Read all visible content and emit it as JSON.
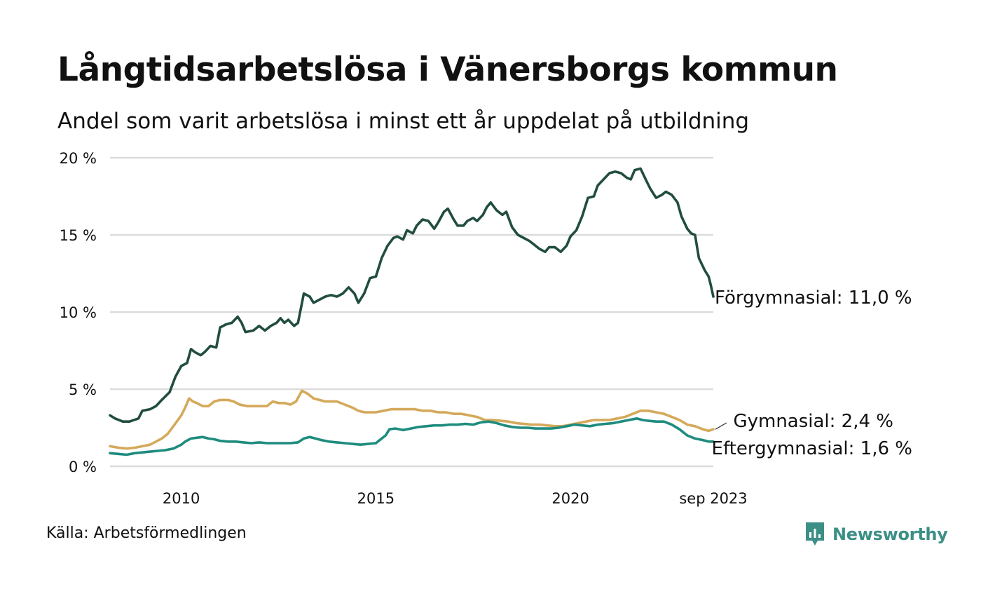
{
  "title": "Långtidsarbetslösa i Vänersborgs kommun",
  "subtitle": "Andel som varit arbetslösa i minst ett år uppdelat på utbildning",
  "source": "Källa: Arbetsförmedlingen",
  "brand": {
    "name": "Newsworthy",
    "color": "#3d8f86"
  },
  "chart_data": {
    "type": "line",
    "title": "Långtidsarbetslösa i Vänersborgs kommun",
    "subtitle": "Andel som varit arbetslösa i minst ett år uppdelat på utbildning",
    "xlabel": "",
    "ylabel": "",
    "xlim": [
      2008.17,
      2023.67
    ],
    "ylim": [
      0,
      20
    ],
    "grid": true,
    "y_ticks": [
      {
        "value": 0,
        "label": "0 %"
      },
      {
        "value": 5,
        "label": "5 %"
      },
      {
        "value": 10,
        "label": "10 %"
      },
      {
        "value": 15,
        "label": "15 %"
      },
      {
        "value": 20,
        "label": "20 %"
      }
    ],
    "x_ticks": [
      {
        "value": 2010,
        "label": "2010"
      },
      {
        "value": 2015,
        "label": "2015"
      },
      {
        "value": 2020,
        "label": "2020"
      },
      {
        "value": 2023.67,
        "label": "sep 2023"
      }
    ],
    "series": [
      {
        "name": "Förgymnasial",
        "end_label": "Förgymnasial: 11,0 %",
        "color": "#214d41",
        "points": [
          [
            2008.17,
            3.3
          ],
          [
            2008.3,
            3.1
          ],
          [
            2008.5,
            2.9
          ],
          [
            2008.67,
            2.9
          ],
          [
            2008.9,
            3.1
          ],
          [
            2009.0,
            3.6
          ],
          [
            2009.2,
            3.7
          ],
          [
            2009.35,
            3.9
          ],
          [
            2009.5,
            4.3
          ],
          [
            2009.7,
            4.8
          ],
          [
            2009.85,
            5.8
          ],
          [
            2010.0,
            6.5
          ],
          [
            2010.15,
            6.7
          ],
          [
            2010.25,
            7.6
          ],
          [
            2010.35,
            7.4
          ],
          [
            2010.5,
            7.2
          ],
          [
            2010.6,
            7.4
          ],
          [
            2010.75,
            7.8
          ],
          [
            2010.9,
            7.7
          ],
          [
            2011.0,
            9.0
          ],
          [
            2011.15,
            9.2
          ],
          [
            2011.3,
            9.3
          ],
          [
            2011.45,
            9.7
          ],
          [
            2011.55,
            9.3
          ],
          [
            2011.65,
            8.7
          ],
          [
            2011.85,
            8.8
          ],
          [
            2012.0,
            9.1
          ],
          [
            2012.15,
            8.8
          ],
          [
            2012.3,
            9.1
          ],
          [
            2012.45,
            9.3
          ],
          [
            2012.55,
            9.6
          ],
          [
            2012.65,
            9.3
          ],
          [
            2012.75,
            9.5
          ],
          [
            2012.9,
            9.1
          ],
          [
            2013.0,
            9.3
          ],
          [
            2013.15,
            11.2
          ],
          [
            2013.3,
            11.0
          ],
          [
            2013.4,
            10.6
          ],
          [
            2013.55,
            10.8
          ],
          [
            2013.7,
            11.0
          ],
          [
            2013.85,
            11.1
          ],
          [
            2014.0,
            11.0
          ],
          [
            2014.15,
            11.2
          ],
          [
            2014.3,
            11.6
          ],
          [
            2014.45,
            11.2
          ],
          [
            2014.55,
            10.6
          ],
          [
            2014.7,
            11.2
          ],
          [
            2014.85,
            12.2
          ],
          [
            2015.0,
            12.3
          ],
          [
            2015.15,
            13.5
          ],
          [
            2015.3,
            14.3
          ],
          [
            2015.45,
            14.8
          ],
          [
            2015.55,
            14.9
          ],
          [
            2015.7,
            14.7
          ],
          [
            2015.8,
            15.3
          ],
          [
            2015.95,
            15.1
          ],
          [
            2016.05,
            15.6
          ],
          [
            2016.2,
            16.0
          ],
          [
            2016.35,
            15.9
          ],
          [
            2016.5,
            15.4
          ],
          [
            2016.6,
            15.8
          ],
          [
            2016.75,
            16.5
          ],
          [
            2016.85,
            16.7
          ],
          [
            2017.0,
            16.0
          ],
          [
            2017.1,
            15.6
          ],
          [
            2017.25,
            15.6
          ],
          [
            2017.35,
            15.9
          ],
          [
            2017.5,
            16.1
          ],
          [
            2017.6,
            15.9
          ],
          [
            2017.75,
            16.3
          ],
          [
            2017.85,
            16.8
          ],
          [
            2017.95,
            17.1
          ],
          [
            2018.1,
            16.6
          ],
          [
            2018.25,
            16.3
          ],
          [
            2018.35,
            16.5
          ],
          [
            2018.5,
            15.5
          ],
          [
            2018.65,
            15.0
          ],
          [
            2018.8,
            14.8
          ],
          [
            2018.95,
            14.6
          ],
          [
            2019.05,
            14.4
          ],
          [
            2019.2,
            14.1
          ],
          [
            2019.35,
            13.9
          ],
          [
            2019.45,
            14.2
          ],
          [
            2019.6,
            14.2
          ],
          [
            2019.75,
            13.9
          ],
          [
            2019.9,
            14.3
          ],
          [
            2020.0,
            14.9
          ],
          [
            2020.15,
            15.3
          ],
          [
            2020.3,
            16.2
          ],
          [
            2020.45,
            17.4
          ],
          [
            2020.6,
            17.5
          ],
          [
            2020.7,
            18.2
          ],
          [
            2020.85,
            18.6
          ],
          [
            2021.0,
            19.0
          ],
          [
            2021.15,
            19.1
          ],
          [
            2021.3,
            19.0
          ],
          [
            2021.45,
            18.7
          ],
          [
            2021.55,
            18.6
          ],
          [
            2021.65,
            19.2
          ],
          [
            2021.8,
            19.3
          ],
          [
            2021.95,
            18.5
          ],
          [
            2022.05,
            18.0
          ],
          [
            2022.2,
            17.4
          ],
          [
            2022.35,
            17.6
          ],
          [
            2022.45,
            17.8
          ],
          [
            2022.6,
            17.6
          ],
          [
            2022.75,
            17.1
          ],
          [
            2022.85,
            16.2
          ],
          [
            2023.0,
            15.4
          ],
          [
            2023.1,
            15.1
          ],
          [
            2023.2,
            15.0
          ],
          [
            2023.3,
            13.5
          ],
          [
            2023.45,
            12.7
          ],
          [
            2023.55,
            12.3
          ],
          [
            2023.6,
            11.8
          ],
          [
            2023.67,
            11.0
          ]
        ]
      },
      {
        "name": "Gymnasial",
        "end_label": "Gymnasial:  2,4 %",
        "color": "#d4a95a",
        "points": [
          [
            2008.17,
            1.3
          ],
          [
            2008.4,
            1.2
          ],
          [
            2008.6,
            1.15
          ],
          [
            2008.8,
            1.2
          ],
          [
            2009.0,
            1.3
          ],
          [
            2009.2,
            1.4
          ],
          [
            2009.35,
            1.6
          ],
          [
            2009.5,
            1.8
          ],
          [
            2009.65,
            2.1
          ],
          [
            2009.8,
            2.6
          ],
          [
            2010.0,
            3.3
          ],
          [
            2010.1,
            3.8
          ],
          [
            2010.2,
            4.4
          ],
          [
            2010.3,
            4.2
          ],
          [
            2010.4,
            4.1
          ],
          [
            2010.55,
            3.9
          ],
          [
            2010.7,
            3.9
          ],
          [
            2010.85,
            4.2
          ],
          [
            2011.0,
            4.3
          ],
          [
            2011.2,
            4.3
          ],
          [
            2011.35,
            4.2
          ],
          [
            2011.5,
            4.0
          ],
          [
            2011.7,
            3.9
          ],
          [
            2011.85,
            3.9
          ],
          [
            2012.0,
            3.9
          ],
          [
            2012.2,
            3.9
          ],
          [
            2012.35,
            4.2
          ],
          [
            2012.5,
            4.1
          ],
          [
            2012.65,
            4.1
          ],
          [
            2012.8,
            4.0
          ],
          [
            2012.95,
            4.2
          ],
          [
            2013.1,
            4.9
          ],
          [
            2013.25,
            4.7
          ],
          [
            2013.4,
            4.4
          ],
          [
            2013.55,
            4.3
          ],
          [
            2013.7,
            4.2
          ],
          [
            2013.85,
            4.2
          ],
          [
            2014.0,
            4.2
          ],
          [
            2014.2,
            4.0
          ],
          [
            2014.4,
            3.8
          ],
          [
            2014.55,
            3.6
          ],
          [
            2014.7,
            3.5
          ],
          [
            2014.85,
            3.5
          ],
          [
            2015.0,
            3.5
          ],
          [
            2015.2,
            3.6
          ],
          [
            2015.4,
            3.7
          ],
          [
            2015.6,
            3.7
          ],
          [
            2015.8,
            3.7
          ],
          [
            2016.0,
            3.7
          ],
          [
            2016.2,
            3.6
          ],
          [
            2016.4,
            3.6
          ],
          [
            2016.6,
            3.5
          ],
          [
            2016.8,
            3.5
          ],
          [
            2017.0,
            3.4
          ],
          [
            2017.2,
            3.4
          ],
          [
            2017.4,
            3.3
          ],
          [
            2017.6,
            3.2
          ],
          [
            2017.8,
            3.0
          ],
          [
            2018.0,
            3.0
          ],
          [
            2018.2,
            2.95
          ],
          [
            2018.4,
            2.9
          ],
          [
            2018.6,
            2.8
          ],
          [
            2018.8,
            2.75
          ],
          [
            2019.0,
            2.7
          ],
          [
            2019.2,
            2.7
          ],
          [
            2019.4,
            2.65
          ],
          [
            2019.6,
            2.6
          ],
          [
            2019.8,
            2.6
          ],
          [
            2020.0,
            2.7
          ],
          [
            2020.2,
            2.8
          ],
          [
            2020.4,
            2.9
          ],
          [
            2020.6,
            3.0
          ],
          [
            2020.8,
            3.0
          ],
          [
            2021.0,
            3.0
          ],
          [
            2021.2,
            3.1
          ],
          [
            2021.4,
            3.2
          ],
          [
            2021.6,
            3.4
          ],
          [
            2021.8,
            3.6
          ],
          [
            2022.0,
            3.6
          ],
          [
            2022.2,
            3.5
          ],
          [
            2022.4,
            3.4
          ],
          [
            2022.6,
            3.2
          ],
          [
            2022.8,
            3.0
          ],
          [
            2023.0,
            2.7
          ],
          [
            2023.2,
            2.6
          ],
          [
            2023.4,
            2.4
          ],
          [
            2023.55,
            2.3
          ],
          [
            2023.67,
            2.4
          ]
        ]
      },
      {
        "name": "Eftergymnasial",
        "end_label": "Eftergymnasial:  1,6 %",
        "color": "#1e8c7e",
        "points": [
          [
            2008.17,
            0.85
          ],
          [
            2008.4,
            0.8
          ],
          [
            2008.6,
            0.75
          ],
          [
            2008.8,
            0.85
          ],
          [
            2009.0,
            0.9
          ],
          [
            2009.2,
            0.95
          ],
          [
            2009.4,
            1.0
          ],
          [
            2009.6,
            1.05
          ],
          [
            2009.8,
            1.15
          ],
          [
            2010.0,
            1.4
          ],
          [
            2010.1,
            1.6
          ],
          [
            2010.25,
            1.8
          ],
          [
            2010.4,
            1.85
          ],
          [
            2010.55,
            1.9
          ],
          [
            2010.7,
            1.8
          ],
          [
            2010.85,
            1.75
          ],
          [
            2011.0,
            1.65
          ],
          [
            2011.2,
            1.6
          ],
          [
            2011.4,
            1.6
          ],
          [
            2011.6,
            1.55
          ],
          [
            2011.8,
            1.5
          ],
          [
            2012.0,
            1.55
          ],
          [
            2012.2,
            1.5
          ],
          [
            2012.4,
            1.5
          ],
          [
            2012.6,
            1.5
          ],
          [
            2012.8,
            1.5
          ],
          [
            2013.0,
            1.55
          ],
          [
            2013.15,
            1.8
          ],
          [
            2013.3,
            1.9
          ],
          [
            2013.45,
            1.8
          ],
          [
            2013.6,
            1.7
          ],
          [
            2013.8,
            1.6
          ],
          [
            2014.0,
            1.55
          ],
          [
            2014.2,
            1.5
          ],
          [
            2014.4,
            1.45
          ],
          [
            2014.6,
            1.4
          ],
          [
            2014.8,
            1.45
          ],
          [
            2015.0,
            1.5
          ],
          [
            2015.1,
            1.7
          ],
          [
            2015.25,
            2.0
          ],
          [
            2015.35,
            2.4
          ],
          [
            2015.5,
            2.45
          ],
          [
            2015.7,
            2.35
          ],
          [
            2015.9,
            2.45
          ],
          [
            2016.1,
            2.55
          ],
          [
            2016.3,
            2.6
          ],
          [
            2016.5,
            2.65
          ],
          [
            2016.7,
            2.65
          ],
          [
            2016.9,
            2.7
          ],
          [
            2017.1,
            2.7
          ],
          [
            2017.3,
            2.75
          ],
          [
            2017.5,
            2.7
          ],
          [
            2017.7,
            2.85
          ],
          [
            2017.9,
            2.9
          ],
          [
            2018.1,
            2.8
          ],
          [
            2018.3,
            2.65
          ],
          [
            2018.5,
            2.55
          ],
          [
            2018.7,
            2.5
          ],
          [
            2018.9,
            2.5
          ],
          [
            2019.1,
            2.45
          ],
          [
            2019.3,
            2.45
          ],
          [
            2019.5,
            2.45
          ],
          [
            2019.7,
            2.5
          ],
          [
            2019.9,
            2.6
          ],
          [
            2020.1,
            2.7
          ],
          [
            2020.3,
            2.65
          ],
          [
            2020.5,
            2.6
          ],
          [
            2020.7,
            2.7
          ],
          [
            2020.9,
            2.75
          ],
          [
            2021.1,
            2.8
          ],
          [
            2021.3,
            2.9
          ],
          [
            2021.5,
            3.0
          ],
          [
            2021.7,
            3.1
          ],
          [
            2021.85,
            3.0
          ],
          [
            2022.0,
            2.95
          ],
          [
            2022.2,
            2.9
          ],
          [
            2022.4,
            2.9
          ],
          [
            2022.6,
            2.7
          ],
          [
            2022.8,
            2.4
          ],
          [
            2023.0,
            2.0
          ],
          [
            2023.2,
            1.8
          ],
          [
            2023.4,
            1.7
          ],
          [
            2023.55,
            1.6
          ],
          [
            2023.67,
            1.6
          ]
        ]
      }
    ]
  }
}
